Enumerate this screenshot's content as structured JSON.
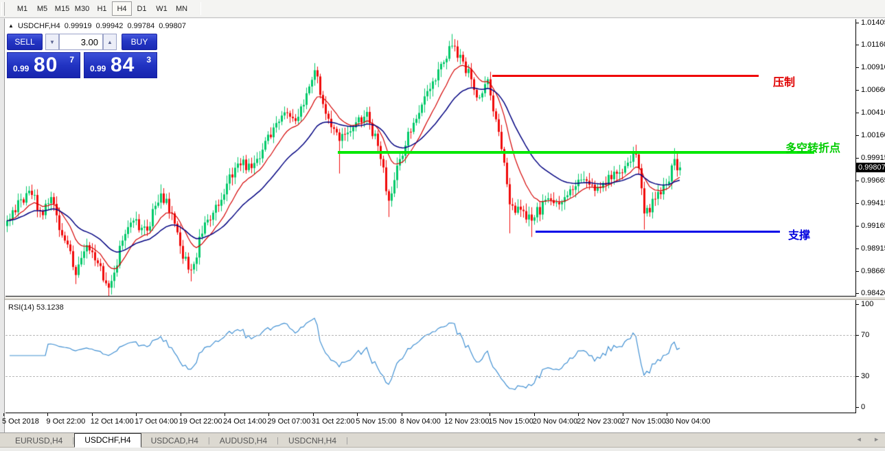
{
  "toolbar": {
    "timeframes": [
      {
        "label": "M1",
        "active": false
      },
      {
        "label": "M5",
        "active": false
      },
      {
        "label": "M15",
        "active": false
      },
      {
        "label": "M30",
        "active": false
      },
      {
        "label": "H1",
        "active": false
      },
      {
        "label": "H4",
        "active": true
      },
      {
        "label": "D1",
        "active": false
      },
      {
        "label": "W1",
        "active": false
      },
      {
        "label": "MN",
        "active": false
      }
    ]
  },
  "chart_header": {
    "collapse_icon": "▲",
    "symbol": "USDCHF,H4",
    "open": "0.99919",
    "high": "0.99942",
    "low": "0.99784",
    "close": "0.99807"
  },
  "trade_panel": {
    "sell_label": "SELL",
    "buy_label": "BUY",
    "amount": "3.00",
    "down_arrow": "▼",
    "up_arrow": "▲",
    "sell_price": {
      "prefix": "0.99",
      "big": "80",
      "sup": "7"
    },
    "buy_price": {
      "prefix": "0.99",
      "big": "84",
      "sup": "3"
    }
  },
  "annotations": {
    "resistance": {
      "text": "压制",
      "color": "#e00000",
      "line_color": "#f00000",
      "price": 1.0083
    },
    "pivot": {
      "text": "多空转折点",
      "color": "#00cc00",
      "line_color": "#00e800",
      "price": 0.9997
    },
    "support": {
      "text": "支撑",
      "color": "#0000dd",
      "line_color": "#0000e8",
      "price": 0.9911
    }
  },
  "rsi_panel": {
    "label": "RSI(14) 53.1238",
    "scale_labels": [
      "100",
      "70",
      "30",
      "0"
    ],
    "dashed_levels": [
      70,
      30
    ]
  },
  "price_axis": {
    "labels": [
      "1.01405",
      "1.01160",
      "1.00910",
      "1.00660",
      "1.00410",
      "1.00160",
      "0.99915",
      "0.99665",
      "0.99415",
      "0.99165",
      "0.98915",
      "0.98665",
      "0.98420"
    ],
    "current": "0.99807"
  },
  "date_axis": {
    "labels": [
      "5 Oct 2018",
      "9 Oct 22:00",
      "12 Oct 14:00",
      "17 Oct 04:00",
      "19 Oct 22:00",
      "24 Oct 14:00",
      "29 Oct 07:00",
      "31 Oct 22:00",
      "5 Nov 15:00",
      "8 Nov 04:00",
      "12 Nov 23:00",
      "15 Nov 15:00",
      "20 Nov 04:00",
      "22 Nov 23:00",
      "27 Nov 15:00",
      "30 Nov 04:00"
    ]
  },
  "tabs": {
    "items": [
      {
        "label": "EURUSD,H4",
        "active": false
      },
      {
        "label": "USDCHF,H4",
        "active": true
      },
      {
        "label": "USDCAD,H4",
        "active": false
      },
      {
        "label": "AUDUSD,H4",
        "active": false
      },
      {
        "label": "USDCNH,H4",
        "active": false
      }
    ],
    "left_arrow": "◄",
    "right_arrow": "►",
    "divider": "|"
  },
  "chart_data": {
    "type": "candlestick",
    "symbol": "USDCHF",
    "timeframe": "H4",
    "title": "USDCHF,H4",
    "current_ohlc": {
      "open": 0.99919,
      "high": 0.99942,
      "low": 0.99784,
      "close": 0.99807
    },
    "last_price": 0.99807,
    "y_axis": {
      "min": 0.9842,
      "max": 1.01405,
      "tick_step": 0.0025,
      "top_label_price": 1.01405
    },
    "x_axis": {
      "bars_per_label": 16,
      "total_bars": 246,
      "labels_key": "date_axis"
    },
    "grid": false,
    "candle_colors": {
      "bull": "#00c96a",
      "bear": "#f00a0a"
    },
    "close_path_keyframes": [
      [
        0,
        0.9922
      ],
      [
        8,
        0.9955
      ],
      [
        13,
        0.9928
      ],
      [
        16,
        0.9948
      ],
      [
        21,
        0.99
      ],
      [
        25,
        0.9862
      ],
      [
        29,
        0.9895
      ],
      [
        33,
        0.9875
      ],
      [
        37,
        0.9848
      ],
      [
        42,
        0.99
      ],
      [
        46,
        0.9922
      ],
      [
        51,
        0.9911
      ],
      [
        56,
        0.9952
      ],
      [
        60,
        0.993
      ],
      [
        64,
        0.988
      ],
      [
        67,
        0.9868
      ],
      [
        72,
        0.992
      ],
      [
        78,
        0.9945
      ],
      [
        84,
        0.9985
      ],
      [
        89,
        0.998
      ],
      [
        94,
        1.001
      ],
      [
        100,
        1.0038
      ],
      [
        105,
        1.0032
      ],
      [
        110,
        1.007
      ],
      [
        112,
        1.0088
      ],
      [
        116,
        1.004
      ],
      [
        121,
        1.001
      ],
      [
        126,
        1.0025
      ],
      [
        131,
        1.0042
      ],
      [
        136,
        0.999
      ],
      [
        139,
        0.9944
      ],
      [
        143,
        0.999
      ],
      [
        148,
        1.003
      ],
      [
        153,
        1.0065
      ],
      [
        158,
        1.0095
      ],
      [
        162,
        1.0115
      ],
      [
        165,
        1.0105
      ],
      [
        169,
        1.0078
      ],
      [
        172,
        1.0058
      ],
      [
        175,
        1.0078
      ],
      [
        179,
        1.002
      ],
      [
        183,
        0.994
      ],
      [
        187,
        0.9934
      ],
      [
        191,
        0.9922
      ],
      [
        196,
        0.9945
      ],
      [
        201,
        0.994
      ],
      [
        206,
        0.9956
      ],
      [
        211,
        0.9966
      ],
      [
        216,
        0.9958
      ],
      [
        221,
        0.9976
      ],
      [
        226,
        0.9986
      ],
      [
        229,
        0.9995
      ],
      [
        232,
        0.993
      ],
      [
        236,
        0.9946
      ],
      [
        240,
        0.9962
      ],
      [
        243,
        0.999
      ],
      [
        245,
        0.99807
      ]
    ],
    "wick_overrides": {
      "high": [
        [
          8,
          0.996
        ],
        [
          56,
          0.9962
        ],
        [
          112,
          1.0095
        ],
        [
          162,
          1.0128
        ],
        [
          229,
          1.0
        ],
        [
          243,
          1.0002
        ]
      ],
      "low": [
        [
          25,
          0.9852
        ],
        [
          37,
          0.9843
        ],
        [
          67,
          0.9855
        ],
        [
          121,
          0.9974
        ],
        [
          139,
          0.9926
        ],
        [
          183,
          0.9908
        ],
        [
          191,
          0.9904
        ],
        [
          232,
          0.9912
        ]
      ]
    },
    "moving_averages": [
      {
        "name": "fast-ma",
        "period": 12,
        "color": "#d40000"
      },
      {
        "name": "slow-ma",
        "period": 30,
        "color": "#000080"
      }
    ],
    "indicator": {
      "name": "RSI",
      "period": 14,
      "value": 53.1238,
      "range": [
        0,
        100
      ],
      "levels": [
        70,
        30
      ],
      "color": "#3f8fd2"
    },
    "horizontal_lines": [
      {
        "name": "resistance",
        "price": 1.0083
      },
      {
        "name": "pivot",
        "price": 0.9997
      },
      {
        "name": "support",
        "price": 0.9911
      }
    ]
  }
}
